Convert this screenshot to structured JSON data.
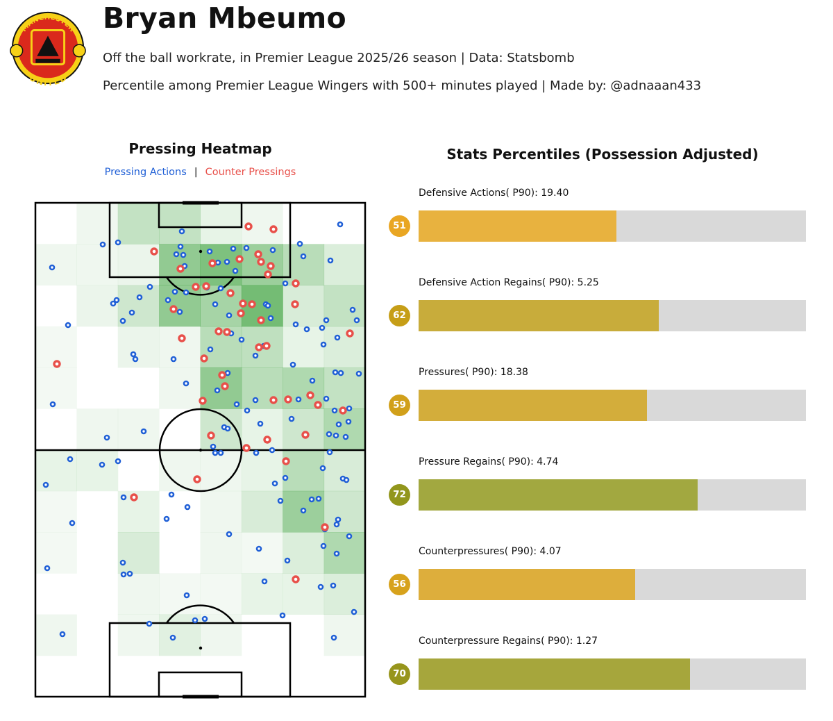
{
  "header": {
    "title": "Bryan Mbeumo",
    "subtitle": "Off the ball workrate, in Premier League 2025/26 season | Data: Statsbomb",
    "subtitle2": "Percentile among Premier League Wingers with 500+ minutes played | Made by: @adnaaan433",
    "logo": {
      "name": "manchester-united-crest",
      "text_top": "MANCHESTER",
      "text_bottom": "UNITED",
      "colors": {
        "red": "#da291c",
        "yellow": "#f7d117",
        "black": "#111111"
      }
    }
  },
  "chart_data": [
    {
      "type": "heatmap",
      "title": "Pressing Heatmap",
      "legend": [
        {
          "name": "Pressing Actions",
          "color": "#1f5fd6"
        },
        {
          "name": "Counter Pressings",
          "color": "#e8504a"
        }
      ],
      "grid": {
        "cols": 8,
        "rows": 12
      },
      "intensity": [
        [
          0,
          0.08,
          0.3,
          0.3,
          0.12,
          0.08,
          0,
          0
        ],
        [
          0.08,
          0.08,
          0.1,
          0.55,
          0.65,
          0.5,
          0.35,
          0.18
        ],
        [
          0,
          0.1,
          0.25,
          0.55,
          0.45,
          0.7,
          0.2,
          0.3
        ],
        [
          0.06,
          0,
          0.1,
          0.08,
          0.35,
          0.32,
          0.12,
          0.18
        ],
        [
          0.06,
          0,
          0,
          0.08,
          0.55,
          0.35,
          0.4,
          0.3
        ],
        [
          0,
          0.08,
          0.08,
          0,
          0.25,
          0.12,
          0.25,
          0.4
        ],
        [
          0.12,
          0.12,
          0,
          0.08,
          0.08,
          0.12,
          0.35,
          0.2
        ],
        [
          0.06,
          0,
          0.12,
          0,
          0.08,
          0.2,
          0.5,
          0.25
        ],
        [
          0.06,
          0,
          0.2,
          0,
          0.08,
          0.06,
          0.18,
          0.4
        ],
        [
          0,
          0,
          0.08,
          0.06,
          0.06,
          0.12,
          0.12,
          0.18
        ],
        [
          0.08,
          0,
          0.08,
          0.15,
          0.08,
          0,
          0,
          0.08
        ],
        [
          0,
          0,
          0,
          0,
          0,
          0,
          0,
          0
        ]
      ],
      "pressing_actions": [
        [
          262,
          333
        ],
        [
          490,
          323
        ],
        [
          148,
          352
        ],
        [
          170,
          349
        ],
        [
          222,
          362
        ],
        [
          254,
          366
        ],
        [
          260,
          355
        ],
        [
          264,
          367
        ],
        [
          302,
          362
        ],
        [
          336,
          358
        ],
        [
          355,
          357
        ],
        [
          393,
          360
        ],
        [
          432,
          351
        ],
        [
          75,
          385
        ],
        [
          266,
          383
        ],
        [
          314,
          378
        ],
        [
          327,
          377
        ],
        [
          339,
          390
        ],
        [
          437,
          369
        ],
        [
          476,
          375
        ],
        [
          216,
          413
        ],
        [
          252,
          420
        ],
        [
          268,
          421
        ],
        [
          298,
          414
        ],
        [
          318,
          415
        ],
        [
          411,
          408
        ],
        [
          163,
          437
        ],
        [
          168,
          432
        ],
        [
          201,
          428
        ],
        [
          259,
          449
        ],
        [
          310,
          438
        ],
        [
          383,
          438
        ],
        [
          390,
          458
        ],
        [
          470,
          461
        ],
        [
          508,
          446
        ],
        [
          514,
          461
        ],
        [
          177,
          462
        ],
        [
          190,
          450
        ],
        [
          242,
          432
        ],
        [
          330,
          454
        ],
        [
          386,
          440
        ],
        [
          98,
          468
        ],
        [
          426,
          467
        ],
        [
          442,
          474
        ],
        [
          464,
          472
        ],
        [
          486,
          486
        ],
        [
          466,
          496
        ],
        [
          333,
          480
        ],
        [
          303,
          503
        ],
        [
          348,
          489
        ],
        [
          368,
          512
        ],
        [
          192,
          510
        ],
        [
          195,
          517
        ],
        [
          250,
          517
        ],
        [
          422,
          525
        ],
        [
          380,
          498
        ],
        [
          328,
          537
        ],
        [
          483,
          536
        ],
        [
          491,
          537
        ],
        [
          517,
          538
        ],
        [
          268,
          552
        ],
        [
          450,
          548
        ],
        [
          313,
          562
        ],
        [
          341,
          582
        ],
        [
          356,
          591
        ],
        [
          76,
          582
        ],
        [
          368,
          576
        ],
        [
          430,
          575
        ],
        [
          470,
          574
        ],
        [
          482,
          591
        ],
        [
          503,
          588
        ],
        [
          502,
          607
        ],
        [
          488,
          611
        ],
        [
          474,
          625
        ],
        [
          484,
          627
        ],
        [
          498,
          629
        ],
        [
          420,
          603
        ],
        [
          375,
          610
        ],
        [
          323,
          615
        ],
        [
          328,
          617
        ],
        [
          207,
          621
        ],
        [
          154,
          630
        ],
        [
          307,
          643
        ],
        [
          310,
          652
        ],
        [
          318,
          652
        ],
        [
          369,
          652
        ],
        [
          392,
          648
        ],
        [
          475,
          651
        ],
        [
          101,
          661
        ],
        [
          147,
          669
        ],
        [
          170,
          664
        ],
        [
          465,
          674
        ],
        [
          494,
          689
        ],
        [
          499,
          691
        ],
        [
          66,
          698
        ],
        [
          396,
          696
        ],
        [
          411,
          688
        ],
        [
          178,
          716
        ],
        [
          247,
          712
        ],
        [
          404,
          721
        ],
        [
          459,
          718
        ],
        [
          449,
          719
        ],
        [
          240,
          747
        ],
        [
          270,
          730
        ],
        [
          104,
          753
        ],
        [
          437,
          735
        ],
        [
          487,
          748
        ],
        [
          468,
          762
        ],
        [
          485,
          755
        ],
        [
          503,
          772
        ],
        [
          466,
          786
        ],
        [
          485,
          797
        ],
        [
          330,
          769
        ],
        [
          373,
          790
        ],
        [
          414,
          807
        ],
        [
          177,
          810
        ],
        [
          178,
          827
        ],
        [
          187,
          826
        ],
        [
          68,
          818
        ],
        [
          381,
          837
        ],
        [
          462,
          845
        ],
        [
          480,
          843
        ],
        [
          269,
          857
        ],
        [
          510,
          881
        ],
        [
          407,
          886
        ],
        [
          215,
          898
        ],
        [
          281,
          893
        ],
        [
          295,
          891
        ],
        [
          90,
          913
        ],
        [
          249,
          918
        ],
        [
          481,
          918
        ]
      ],
      "counter_pressings": [
        [
          358,
          326
        ],
        [
          394,
          330
        ],
        [
          222,
          362
        ],
        [
          306,
          379
        ],
        [
          345,
          373
        ],
        [
          372,
          366
        ],
        [
          376,
          377
        ],
        [
          390,
          383
        ],
        [
          260,
          387
        ],
        [
          282,
          413
        ],
        [
          297,
          412
        ],
        [
          386,
          395
        ],
        [
          426,
          408
        ],
        [
          250,
          445
        ],
        [
          332,
          422
        ],
        [
          350,
          437
        ],
        [
          363,
          438
        ],
        [
          347,
          451
        ],
        [
          376,
          461
        ],
        [
          425,
          438
        ],
        [
          262,
          487
        ],
        [
          315,
          477
        ],
        [
          327,
          478
        ],
        [
          373,
          500
        ],
        [
          384,
          498
        ],
        [
          504,
          480
        ],
        [
          82,
          524
        ],
        [
          294,
          516
        ],
        [
          320,
          540
        ],
        [
          324,
          556
        ],
        [
          292,
          577
        ],
        [
          394,
          576
        ],
        [
          447,
          569
        ],
        [
          458,
          583
        ],
        [
          415,
          575
        ],
        [
          494,
          591
        ],
        [
          304,
          627
        ],
        [
          385,
          633
        ],
        [
          440,
          626
        ],
        [
          355,
          645
        ],
        [
          412,
          664
        ],
        [
          284,
          690
        ],
        [
          193,
          716
        ],
        [
          468,
          759
        ],
        [
          426,
          834
        ]
      ]
    },
    {
      "type": "bar",
      "title": "Stats Percentiles (Possession Adjusted)",
      "xlim": [
        0,
        100
      ],
      "bars": [
        {
          "label": "Defensive Actions( P90): 19.40",
          "stat": "Defensive Actions( P90)",
          "value": 19.4,
          "percentile": 51,
          "color": "#e8b23f",
          "badge_color": "#e9a623"
        },
        {
          "label": "Defensive Action Regains( P90): 5.25",
          "stat": "Defensive Action Regains( P90)",
          "value": 5.25,
          "percentile": 62,
          "color": "#c8ac3b",
          "badge_color": "#c69e17"
        },
        {
          "label": "Pressures( P90): 18.38",
          "stat": "Pressures( P90)",
          "value": 18.38,
          "percentile": 59,
          "color": "#d3ad3b",
          "badge_color": "#d1a01a"
        },
        {
          "label": "Pressure Regains( P90): 4.74",
          "stat": "Pressure Regains( P90)",
          "value": 4.74,
          "percentile": 72,
          "color": "#a2a840",
          "badge_color": "#92961c"
        },
        {
          "label": "Counterpressures( P90): 4.07",
          "stat": "Counterpressures( P90)",
          "value": 4.07,
          "percentile": 56,
          "color": "#ddae3c",
          "badge_color": "#d7a21c"
        },
        {
          "label": "Counterpressure Regains( P90): 1.27",
          "stat": "Counterpressure Regains( P90)",
          "value": 1.27,
          "percentile": 70,
          "color": "#a6a63c",
          "badge_color": "#97951c"
        }
      ]
    }
  ]
}
